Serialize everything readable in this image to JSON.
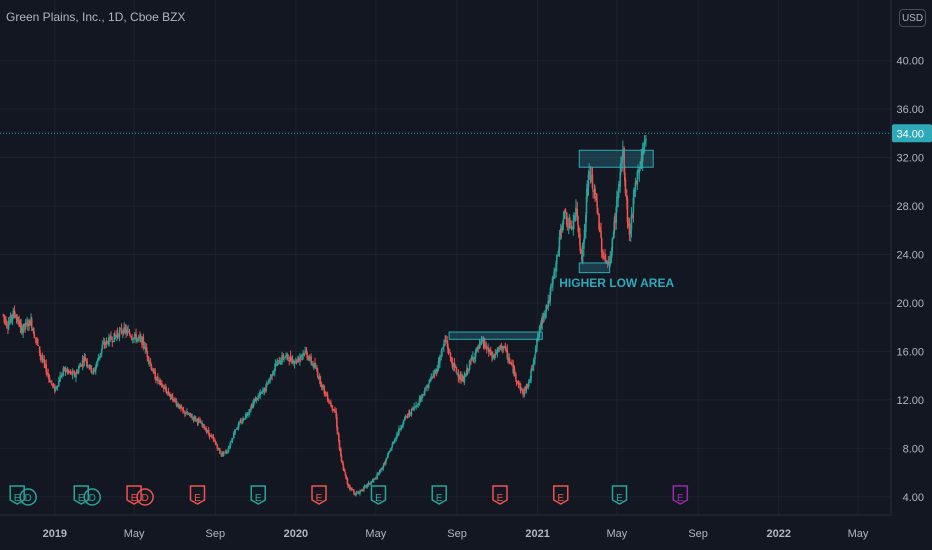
{
  "header": {
    "title": "Green Plains, Inc., 1D, Cboe BZX",
    "currency": "USD"
  },
  "colors": {
    "background": "#131722",
    "up": "#26a69a",
    "down": "#ef5350",
    "grid": "#1e222d",
    "axis_text": "#b2b5be",
    "accent": "#2ea9b8",
    "dividend": "#9c27b0"
  },
  "chart_data": {
    "type": "candlestick",
    "title": "Green Plains, Inc., 1D, Cboe BZX",
    "ylim": [
      2.5,
      45
    ],
    "y_ticks": [
      "4.00",
      "8.00",
      "12.00",
      "16.00",
      "20.00",
      "24.00",
      "28.00",
      "32.00",
      "36.00",
      "40.00"
    ],
    "x_ticks": [
      "2019",
      "May",
      "Sep",
      "2020",
      "May",
      "Sep",
      "2021",
      "May",
      "Sep",
      "2022",
      "May"
    ],
    "last_price": "34.00",
    "last_price_value": 34.0,
    "price_path": [
      [
        "2018-10-15",
        19.0
      ],
      [
        "2018-10-22",
        18.2
      ],
      [
        "2018-11-01",
        19.2
      ],
      [
        "2018-11-12",
        17.8
      ],
      [
        "2018-11-26",
        18.5
      ],
      [
        "2018-12-10",
        15.8
      ],
      [
        "2018-12-24",
        13.8
      ],
      [
        "2019-01-01",
        12.8
      ],
      [
        "2019-01-15",
        14.5
      ],
      [
        "2019-02-01",
        14.0
      ],
      [
        "2019-02-15",
        15.5
      ],
      [
        "2019-03-01",
        14.2
      ],
      [
        "2019-03-15",
        16.5
      ],
      [
        "2019-04-01",
        17.2
      ],
      [
        "2019-04-15",
        17.8
      ],
      [
        "2019-05-01",
        17.2
      ],
      [
        "2019-05-15",
        16.8
      ],
      [
        "2019-06-01",
        14.0
      ],
      [
        "2019-06-15",
        13.0
      ],
      [
        "2019-07-01",
        12.0
      ],
      [
        "2019-07-15",
        11.0
      ],
      [
        "2019-08-01",
        10.5
      ],
      [
        "2019-08-15",
        9.8
      ],
      [
        "2019-09-01",
        8.5
      ],
      [
        "2019-09-10",
        7.5
      ],
      [
        "2019-09-20",
        7.8
      ],
      [
        "2019-10-01",
        9.5
      ],
      [
        "2019-10-15",
        10.5
      ],
      [
        "2019-11-01",
        12.0
      ],
      [
        "2019-11-15",
        12.8
      ],
      [
        "2019-12-01",
        14.8
      ],
      [
        "2019-12-15",
        15.6
      ],
      [
        "2020-01-01",
        15.2
      ],
      [
        "2020-01-15",
        16.0
      ],
      [
        "2020-02-01",
        14.5
      ],
      [
        "2020-02-15",
        12.5
      ],
      [
        "2020-03-01",
        11.0
      ],
      [
        "2020-03-10",
        7.0
      ],
      [
        "2020-03-20",
        5.0
      ],
      [
        "2020-04-01",
        4.2
      ],
      [
        "2020-04-15",
        4.8
      ],
      [
        "2020-05-01",
        5.5
      ],
      [
        "2020-05-15",
        6.8
      ],
      [
        "2020-06-01",
        9.0
      ],
      [
        "2020-06-15",
        10.5
      ],
      [
        "2020-07-01",
        11.5
      ],
      [
        "2020-07-15",
        12.8
      ],
      [
        "2020-08-01",
        14.5
      ],
      [
        "2020-08-15",
        17.0
      ],
      [
        "2020-08-25",
        15.0
      ],
      [
        "2020-09-10",
        13.5
      ],
      [
        "2020-09-25",
        15.5
      ],
      [
        "2020-10-10",
        16.8
      ],
      [
        "2020-10-25",
        15.5
      ],
      [
        "2020-11-10",
        16.5
      ],
      [
        "2020-11-25",
        14.5
      ],
      [
        "2020-12-10",
        12.5
      ],
      [
        "2020-12-20",
        13.5
      ],
      [
        "2021-01-01",
        17.0
      ],
      [
        "2021-01-10",
        19.0
      ],
      [
        "2021-01-20",
        20.5
      ],
      [
        "2021-02-01",
        24.0
      ],
      [
        "2021-02-10",
        27.5
      ],
      [
        "2021-02-20",
        26.0
      ],
      [
        "2021-03-01",
        27.5
      ],
      [
        "2021-03-10",
        23.5
      ],
      [
        "2021-03-20",
        31.0
      ],
      [
        "2021-04-01",
        28.0
      ],
      [
        "2021-04-10",
        24.0
      ],
      [
        "2021-04-20",
        23.0
      ],
      [
        "2021-05-01",
        28.0
      ],
      [
        "2021-05-10",
        32.5
      ],
      [
        "2021-05-20",
        25.5
      ],
      [
        "2021-06-01",
        30.5
      ],
      [
        "2021-06-10",
        32.5
      ],
      [
        "2021-06-15",
        34.0
      ]
    ],
    "earnings_markers": [
      {
        "x": "2018-11-05",
        "label": "E",
        "color": "up",
        "combo": "ED"
      },
      {
        "x": "2019-02-10",
        "label": "E",
        "color": "up",
        "combo": "ED"
      },
      {
        "x": "2019-05-01",
        "label": "E",
        "color": "down",
        "combo": "ED"
      },
      {
        "x": "2019-08-05",
        "label": "E",
        "color": "down"
      },
      {
        "x": "2019-11-05",
        "label": "E",
        "color": "up"
      },
      {
        "x": "2020-02-05",
        "label": "E",
        "color": "down"
      },
      {
        "x": "2020-05-05",
        "label": "E",
        "color": "up"
      },
      {
        "x": "2020-08-05",
        "label": "E",
        "color": "up"
      },
      {
        "x": "2020-11-05",
        "label": "E",
        "color": "down"
      },
      {
        "x": "2021-02-05",
        "label": "E",
        "color": "down"
      },
      {
        "x": "2021-05-05",
        "label": "E",
        "color": "up"
      },
      {
        "x": "2021-08-05",
        "label": "E",
        "color": "dividend"
      }
    ],
    "annotations": [
      {
        "type": "rect",
        "x0": "2020-08-20",
        "x1": "2021-01-08",
        "y0": 17.0,
        "y1": 17.6
      },
      {
        "type": "rect",
        "x0": "2021-03-05",
        "x1": "2021-06-25",
        "y0": 31.2,
        "y1": 32.6
      },
      {
        "type": "rect",
        "x0": "2021-03-05",
        "x1": "2021-04-20",
        "y0": 22.5,
        "y1": 23.3
      },
      {
        "type": "text",
        "x": "2021-03-05",
        "y": 21.3,
        "text": "HIGHER LOW AREA"
      }
    ]
  }
}
